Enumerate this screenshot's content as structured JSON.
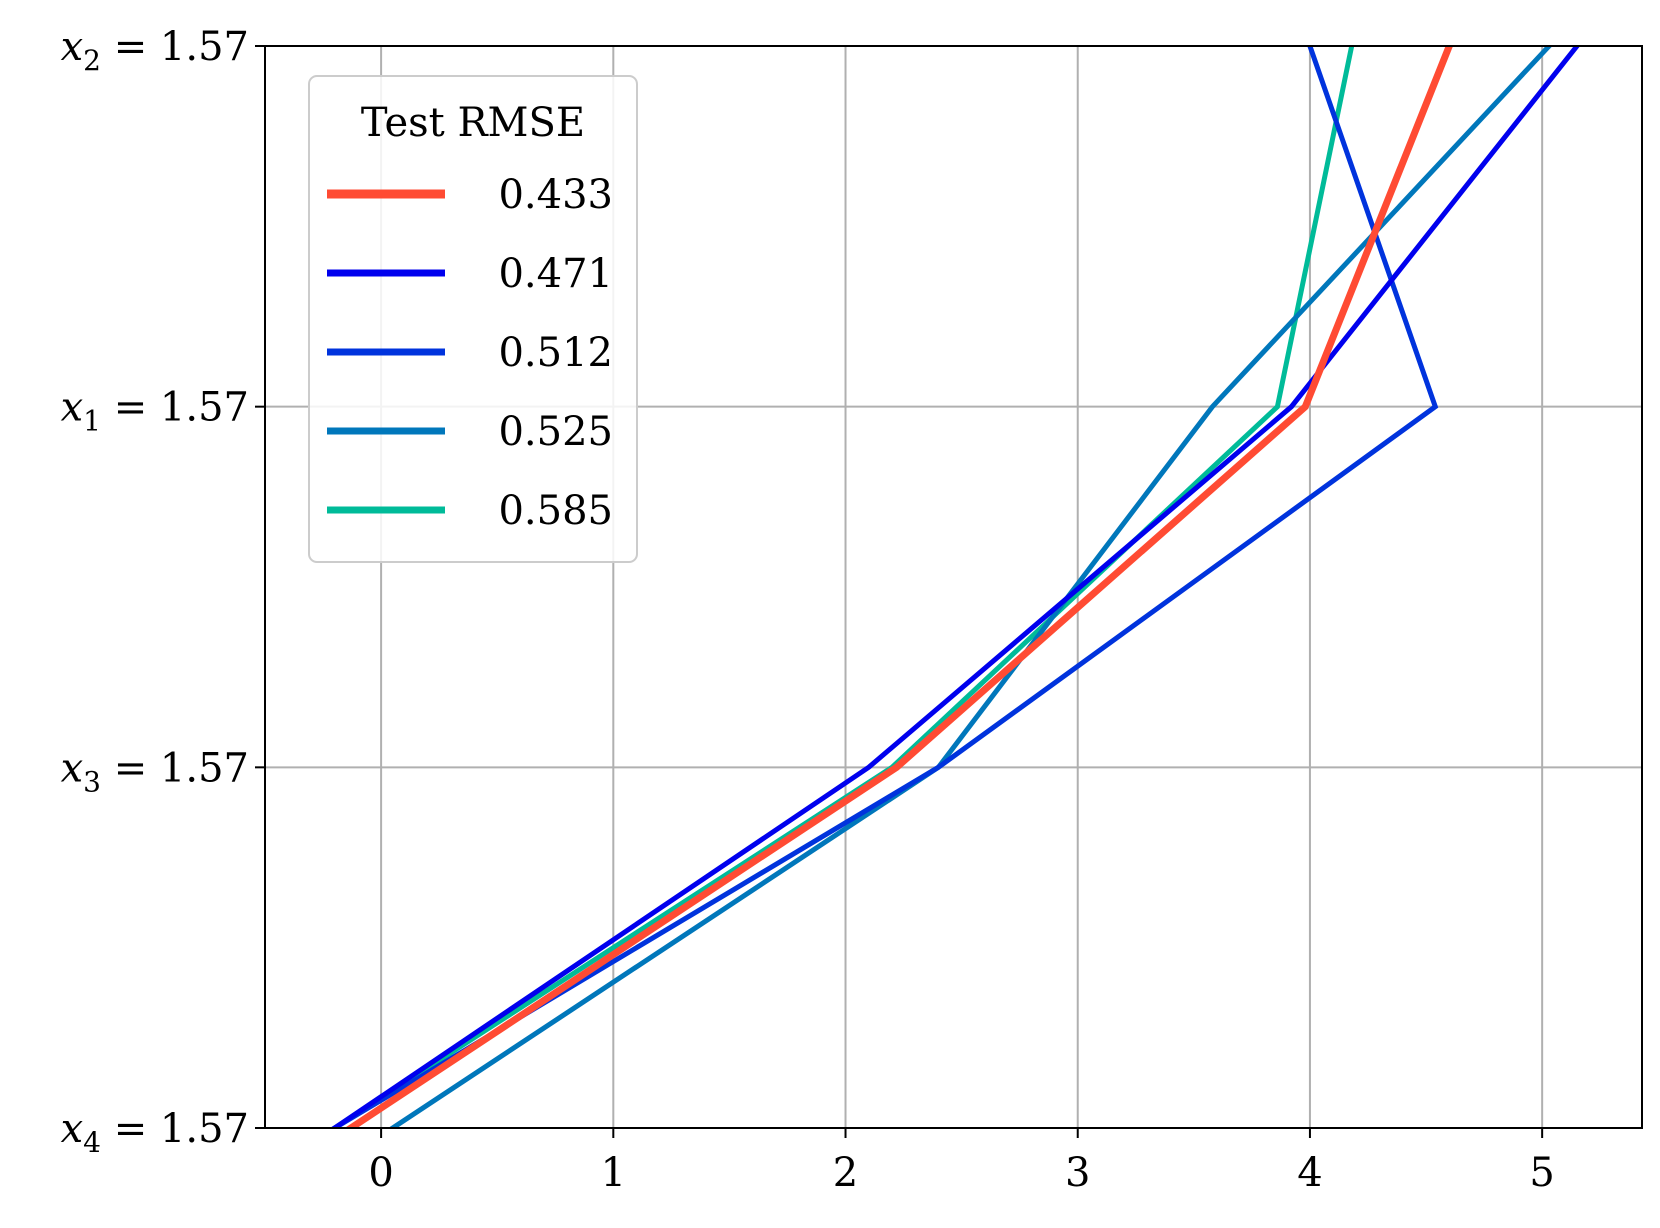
{
  "chart_data": {
    "type": "line",
    "orientation": "horizontal-value-axis",
    "title": "",
    "xlabel": "",
    "ylabel": "",
    "xlim": [
      -0.5,
      5.43
    ],
    "xticks": [
      0,
      1,
      2,
      3,
      4,
      5
    ],
    "xtick_labels": [
      "0",
      "1",
      "2",
      "3",
      "4",
      "5"
    ],
    "categories": [
      "x4 = 1.57",
      "x3 = 1.57",
      "x1 = 1.57",
      "x2 = 1.57"
    ],
    "category_labels": [
      {
        "var": "x",
        "sub": "4",
        "rest": " = 1.57"
      },
      {
        "var": "x",
        "sub": "3",
        "rest": " = 1.57"
      },
      {
        "var": "x",
        "sub": "1",
        "rest": " = 1.57"
      },
      {
        "var": "x",
        "sub": "2",
        "rest": " = 1.57"
      }
    ],
    "grid": true,
    "legend": {
      "title": "Test RMSE",
      "placement": "upper-left"
    },
    "series": [
      {
        "name": "0.433",
        "color": "#ff4b33",
        "width": 7,
        "values": [
          -0.13,
          2.22,
          3.98,
          4.6
        ]
      },
      {
        "name": "0.471",
        "color": "#0000ee",
        "width": 5,
        "values": [
          -0.2,
          2.1,
          3.92,
          5.15
        ]
      },
      {
        "name": "0.512",
        "color": "#0033dd",
        "width": 5,
        "values": [
          -0.2,
          2.4,
          4.54,
          4.0
        ]
      },
      {
        "name": "0.525",
        "color": "#0077bb",
        "width": 5,
        "values": [
          0.05,
          2.4,
          3.58,
          5.03
        ]
      },
      {
        "name": "0.585",
        "color": "#00bb99",
        "width": 5,
        "values": [
          -0.2,
          2.2,
          3.86,
          4.18
        ]
      }
    ]
  }
}
